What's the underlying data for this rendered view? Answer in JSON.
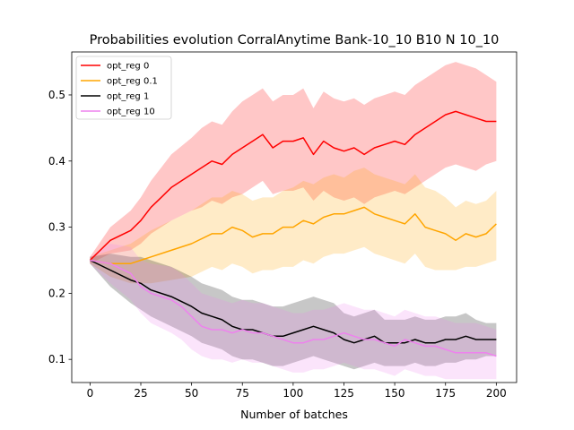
{
  "chart_data": {
    "type": "line",
    "title": "Probabilities evolution CorralAnytime Bank-10_10 B10 N 10_10",
    "xlabel": "Number of batches",
    "ylabel": "",
    "xlim": [
      -9,
      210
    ],
    "ylim": [
      0.065,
      0.565
    ],
    "xticks": [
      0,
      25,
      50,
      75,
      100,
      125,
      150,
      175,
      200
    ],
    "yticks": [
      0.1,
      0.2,
      0.3,
      0.4,
      0.5
    ],
    "ytick_labels": [
      "0.1",
      "0.2",
      "0.3",
      "0.4",
      "0.5"
    ],
    "grid": false,
    "legend_position": "upper-left",
    "series": [
      {
        "name": "opt_reg 0",
        "color": "#ff0000",
        "x": [
          0,
          10,
          20,
          25,
          30,
          35,
          40,
          50,
          55,
          60,
          65,
          70,
          75,
          80,
          85,
          90,
          95,
          100,
          105,
          110,
          115,
          120,
          125,
          130,
          135,
          140,
          145,
          150,
          155,
          160,
          165,
          170,
          175,
          180,
          185,
          190,
          195,
          200
        ],
        "mean": [
          0.25,
          0.28,
          0.295,
          0.31,
          0.33,
          0.345,
          0.36,
          0.38,
          0.39,
          0.4,
          0.395,
          0.41,
          0.42,
          0.43,
          0.44,
          0.42,
          0.43,
          0.43,
          0.435,
          0.41,
          0.43,
          0.42,
          0.415,
          0.42,
          0.41,
          0.42,
          0.425,
          0.43,
          0.425,
          0.44,
          0.45,
          0.46,
          0.47,
          0.475,
          0.47,
          0.465,
          0.46,
          0.46
        ],
        "lower": [
          0.245,
          0.26,
          0.265,
          0.275,
          0.29,
          0.3,
          0.31,
          0.325,
          0.33,
          0.34,
          0.335,
          0.345,
          0.35,
          0.36,
          0.37,
          0.35,
          0.355,
          0.355,
          0.36,
          0.34,
          0.355,
          0.345,
          0.34,
          0.345,
          0.335,
          0.345,
          0.35,
          0.355,
          0.35,
          0.36,
          0.37,
          0.38,
          0.39,
          0.395,
          0.39,
          0.385,
          0.395,
          0.4
        ],
        "upper": [
          0.255,
          0.3,
          0.325,
          0.345,
          0.37,
          0.39,
          0.41,
          0.435,
          0.45,
          0.46,
          0.455,
          0.475,
          0.49,
          0.5,
          0.51,
          0.49,
          0.5,
          0.5,
          0.51,
          0.48,
          0.505,
          0.495,
          0.49,
          0.495,
          0.485,
          0.495,
          0.5,
          0.505,
          0.5,
          0.515,
          0.525,
          0.535,
          0.545,
          0.55,
          0.545,
          0.54,
          0.53,
          0.52
        ]
      },
      {
        "name": "opt_reg 0.1",
        "color": "#ffa500",
        "x": [
          0,
          10,
          20,
          25,
          30,
          40,
          50,
          60,
          65,
          70,
          75,
          80,
          85,
          90,
          95,
          100,
          105,
          110,
          115,
          120,
          125,
          130,
          135,
          140,
          145,
          150,
          155,
          160,
          165,
          170,
          175,
          180,
          185,
          190,
          195,
          200
        ],
        "mean": [
          0.25,
          0.245,
          0.245,
          0.25,
          0.255,
          0.265,
          0.275,
          0.29,
          0.29,
          0.3,
          0.295,
          0.285,
          0.29,
          0.29,
          0.3,
          0.3,
          0.31,
          0.305,
          0.315,
          0.32,
          0.32,
          0.325,
          0.33,
          0.32,
          0.315,
          0.31,
          0.305,
          0.32,
          0.3,
          0.295,
          0.29,
          0.28,
          0.29,
          0.285,
          0.29,
          0.305
        ],
        "lower": [
          0.245,
          0.225,
          0.215,
          0.215,
          0.215,
          0.22,
          0.225,
          0.24,
          0.235,
          0.245,
          0.24,
          0.23,
          0.235,
          0.235,
          0.24,
          0.24,
          0.25,
          0.245,
          0.255,
          0.26,
          0.26,
          0.265,
          0.27,
          0.26,
          0.255,
          0.25,
          0.245,
          0.26,
          0.24,
          0.235,
          0.235,
          0.235,
          0.24,
          0.24,
          0.245,
          0.25
        ],
        "upper": [
          0.255,
          0.265,
          0.275,
          0.285,
          0.295,
          0.31,
          0.325,
          0.345,
          0.345,
          0.355,
          0.35,
          0.34,
          0.345,
          0.345,
          0.355,
          0.36,
          0.37,
          0.365,
          0.375,
          0.38,
          0.375,
          0.385,
          0.39,
          0.38,
          0.375,
          0.37,
          0.365,
          0.38,
          0.36,
          0.355,
          0.345,
          0.33,
          0.34,
          0.335,
          0.34,
          0.355
        ]
      },
      {
        "name": "opt_reg 1",
        "color": "#000000",
        "x": [
          0,
          10,
          20,
          25,
          30,
          40,
          50,
          55,
          60,
          65,
          70,
          75,
          80,
          85,
          90,
          95,
          100,
          105,
          110,
          115,
          120,
          125,
          130,
          135,
          140,
          145,
          150,
          155,
          160,
          165,
          170,
          175,
          180,
          185,
          190,
          195,
          200
        ],
        "mean": [
          0.25,
          0.235,
          0.22,
          0.215,
          0.205,
          0.195,
          0.18,
          0.17,
          0.165,
          0.16,
          0.15,
          0.145,
          0.145,
          0.14,
          0.135,
          0.135,
          0.14,
          0.145,
          0.15,
          0.145,
          0.14,
          0.13,
          0.125,
          0.13,
          0.135,
          0.125,
          0.125,
          0.125,
          0.13,
          0.125,
          0.125,
          0.13,
          0.13,
          0.135,
          0.13,
          0.13,
          0.13
        ],
        "lower": [
          0.245,
          0.21,
          0.185,
          0.175,
          0.165,
          0.15,
          0.135,
          0.125,
          0.12,
          0.115,
          0.105,
          0.1,
          0.1,
          0.095,
          0.09,
          0.09,
          0.095,
          0.1,
          0.105,
          0.1,
          0.095,
          0.09,
          0.085,
          0.09,
          0.095,
          0.09,
          0.09,
          0.09,
          0.095,
          0.09,
          0.09,
          0.095,
          0.095,
          0.1,
          0.1,
          0.105,
          0.105
        ],
        "upper": [
          0.255,
          0.26,
          0.255,
          0.255,
          0.25,
          0.24,
          0.225,
          0.215,
          0.21,
          0.205,
          0.195,
          0.19,
          0.19,
          0.185,
          0.18,
          0.18,
          0.185,
          0.19,
          0.195,
          0.19,
          0.185,
          0.17,
          0.165,
          0.17,
          0.175,
          0.16,
          0.16,
          0.16,
          0.165,
          0.16,
          0.16,
          0.165,
          0.165,
          0.17,
          0.16,
          0.155,
          0.155
        ]
      },
      {
        "name": "opt_reg 10",
        "color": "#ee82ee",
        "x": [
          0,
          10,
          20,
          25,
          30,
          40,
          45,
          50,
          55,
          60,
          65,
          70,
          75,
          80,
          85,
          90,
          95,
          100,
          105,
          110,
          115,
          120,
          125,
          130,
          135,
          140,
          145,
          150,
          155,
          160,
          165,
          170,
          175,
          180,
          185,
          190,
          195,
          200
        ],
        "mean": [
          0.25,
          0.245,
          0.23,
          0.21,
          0.2,
          0.19,
          0.18,
          0.165,
          0.15,
          0.145,
          0.145,
          0.14,
          0.145,
          0.14,
          0.14,
          0.135,
          0.13,
          0.125,
          0.125,
          0.13,
          0.13,
          0.135,
          0.14,
          0.135,
          0.13,
          0.13,
          0.125,
          0.12,
          0.13,
          0.125,
          0.12,
          0.12,
          0.115,
          0.11,
          0.11,
          0.11,
          0.11,
          0.105
        ],
        "lower": [
          0.245,
          0.215,
          0.19,
          0.17,
          0.155,
          0.14,
          0.13,
          0.115,
          0.105,
          0.1,
          0.1,
          0.095,
          0.1,
          0.095,
          0.095,
          0.09,
          0.085,
          0.08,
          0.08,
          0.085,
          0.085,
          0.09,
          0.095,
          0.09,
          0.085,
          0.085,
          0.08,
          0.075,
          0.085,
          0.08,
          0.075,
          0.075,
          0.07,
          0.07,
          0.07,
          0.07,
          0.07,
          0.07
        ],
        "upper": [
          0.255,
          0.275,
          0.27,
          0.25,
          0.245,
          0.24,
          0.23,
          0.215,
          0.2,
          0.195,
          0.19,
          0.185,
          0.19,
          0.185,
          0.185,
          0.18,
          0.175,
          0.17,
          0.17,
          0.175,
          0.175,
          0.18,
          0.185,
          0.18,
          0.175,
          0.175,
          0.17,
          0.165,
          0.175,
          0.17,
          0.165,
          0.165,
          0.16,
          0.155,
          0.155,
          0.155,
          0.15,
          0.145
        ]
      }
    ]
  }
}
